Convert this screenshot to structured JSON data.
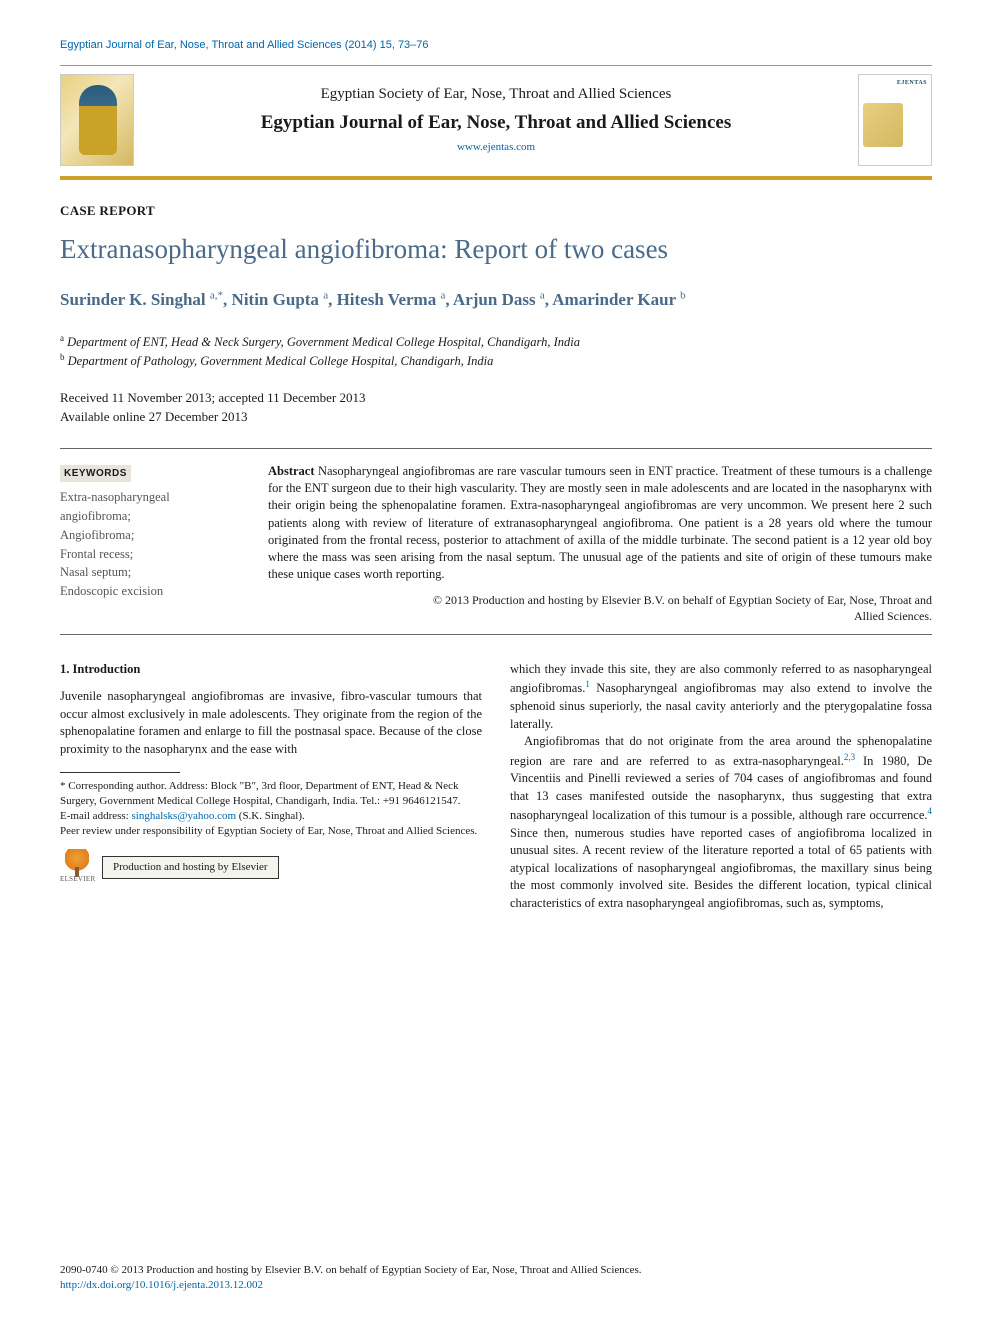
{
  "running_head": "Egyptian Journal of Ear, Nose, Throat and Allied Sciences (2014) 15, 73–76",
  "masthead": {
    "society": "Egyptian Society of Ear, Nose, Throat and Allied Sciences",
    "journal": "Egyptian Journal of Ear, Nose, Throat and Allied Sciences",
    "url": "www.ejentas.com",
    "cover_label": "EJENTAS"
  },
  "article_type": "CASE REPORT",
  "title": "Extranasopharyngeal angiofibroma: Report of two cases",
  "authors_html": "Surinder K. Singhal <sup>a,*</sup>, Nitin Gupta <sup>a</sup>, Hitesh Verma <sup>a</sup>, Arjun Dass <sup>a</sup>, Amarinder Kaur <sup>b</sup>",
  "authors": [
    {
      "name": "Surinder K. Singhal",
      "aff": "a,*"
    },
    {
      "name": "Nitin Gupta",
      "aff": "a"
    },
    {
      "name": "Hitesh Verma",
      "aff": "a"
    },
    {
      "name": "Arjun Dass",
      "aff": "a"
    },
    {
      "name": "Amarinder Kaur",
      "aff": "b"
    }
  ],
  "affiliations": {
    "a": "Department of ENT, Head & Neck Surgery, Government Medical College Hospital, Chandigarh, India",
    "b": "Department of Pathology, Government Medical College Hospital, Chandigarh, India"
  },
  "dates": {
    "line1": "Received 11 November 2013; accepted 11 December 2013",
    "line2": "Available online 27 December 2013"
  },
  "keywords_label": "KEYWORDS",
  "keywords": "Extra-nasopharyngeal angiofibroma;\nAngiofibroma;\nFrontal recess;\nNasal septum;\nEndoscopic excision",
  "abstract_label": "Abstract",
  "abstract": "Nasopharyngeal angiofibromas are rare vascular tumours seen in ENT practice. Treatment of these tumours is a challenge for the ENT surgeon due to their high vascularity. They are mostly seen in male adolescents and are located in the nasopharynx with their origin being the sphenopalatine foramen. Extra-nasopharyngeal angiofibromas are very uncommon. We present here 2 such patients along with review of literature of extranasopharyngeal angiofibroma. One patient is a 28 years old where the tumour originated from the frontal recess, posterior to attachment of axilla of the middle turbinate. The second patient is a 12 year old boy where the mass was seen arising from the nasal septum. The unusual age of the patients and site of origin of these tumours make these unique cases worth reporting.",
  "abs_copy1": "© 2013 Production and hosting by Elsevier B.V. on behalf of Egyptian Society of Ear, Nose, Throat and",
  "abs_copy2": "Allied Sciences.",
  "section1_head": "1. Introduction",
  "col_left_p1": "Juvenile nasopharyngeal angiofibromas are invasive, fibro-vascular tumours that occur almost exclusively in male adolescents. They originate from the region of the sphenopalatine foramen and enlarge to fill the postnasal space. Because of the close proximity to the nasopharynx and the ease with",
  "col_right_p1_a": "which they invade this site, they are also commonly referred to as nasopharyngeal angiofibromas.",
  "col_right_p1_b": " Nasopharyngeal angiofibromas may also extend to involve the sphenoid sinus superiorly, the nasal cavity anteriorly and the pterygopalatine fossa laterally.",
  "col_right_p2_a": "Angiofibromas that do not originate from the area around the sphenopalatine region are rare and are referred to as extra-nasopharyngeal.",
  "col_right_p2_b": " In 1980, De Vincentiis and Pinelli reviewed a series of 704 cases of angiofibromas and found that 13 cases manifested outside the nasopharynx, thus suggesting that extra nasopharyngeal localization of this tumour is a possible, although rare occurrence.",
  "col_right_p2_c": " Since then, numerous studies have reported cases of angiofibroma localized in unusual sites. A recent review of the literature reported a total of 65 patients with atypical localizations of nasopharyngeal angiofibromas, the maxillary sinus being the most commonly involved site. Besides the different location, typical clinical characteristics of extra nasopharyngeal angiofibromas, such as, symptoms,",
  "ref1": "1",
  "ref23": "2,3",
  "ref4": "4",
  "footnotes": {
    "corr": "* Corresponding author. Address: Block \"B\", 3rd floor, Department of ENT, Head & Neck Surgery, Government Medical College Hospital, Chandigarh, India. Tel.: +91 9646121547.",
    "email_label": "E-mail address:",
    "email": "singhalsks@yahoo.com",
    "email_paren": "(S.K. Singhal).",
    "peer": "Peer review under responsibility of Egyptian Society of Ear, Nose, Throat and Allied Sciences.",
    "elsevier_label": "ELSEVIER",
    "prod": "Production and hosting by Elsevier"
  },
  "footer": {
    "line": "2090-0740 © 2013 Production and hosting by Elsevier B.V. on behalf of Egyptian Society of Ear, Nose, Throat and Allied Sciences.",
    "doi": "http://dx.doi.org/10.1016/j.ejenta.2013.12.002"
  },
  "colors": {
    "link": "#0066a8",
    "title": "#4a6a8a",
    "gold_rule": "#c9a227",
    "kw_bg": "#e8e4dc"
  }
}
